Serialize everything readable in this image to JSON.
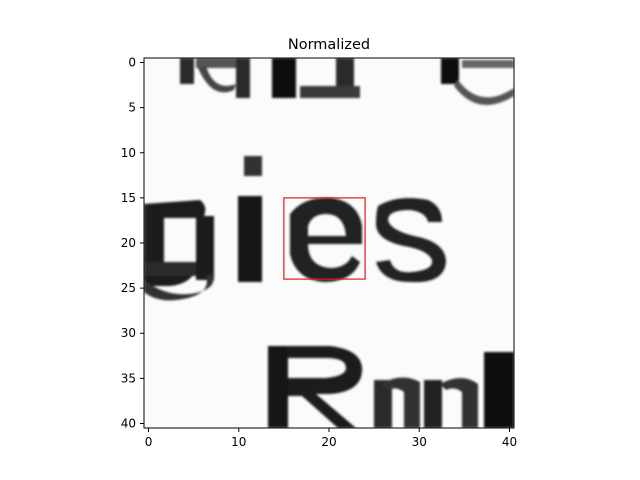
{
  "chart_data": {
    "type": "heatmap",
    "title": "Normalized",
    "subtitle": "",
    "xlabel": "",
    "ylabel": "",
    "colormap": "grayscale (dark = high ink density)",
    "grid_size": [
      41,
      41
    ],
    "xlim": [
      -0.5,
      40.5
    ],
    "ylim": [
      40.5,
      -0.5
    ],
    "x_ticks": [
      0,
      10,
      20,
      30,
      40
    ],
    "y_ticks": [
      0,
      5,
      10,
      15,
      20,
      25,
      30,
      35,
      40
    ],
    "x_tick_labels": [
      "0",
      "10",
      "20",
      "30",
      "40"
    ],
    "y_tick_labels": [
      "0",
      "5",
      "10",
      "15",
      "20",
      "25",
      "30",
      "35",
      "40"
    ],
    "grid": false,
    "legend": "none",
    "image_content": "scanned text fragment: top row partial letters, middle row 'gies' with 'e' highlighted, bottom row 'Rm'",
    "highlight_box": {
      "x_range": [
        15,
        24
      ],
      "y_range": [
        15,
        24
      ],
      "color": "#e31a1c"
    }
  }
}
